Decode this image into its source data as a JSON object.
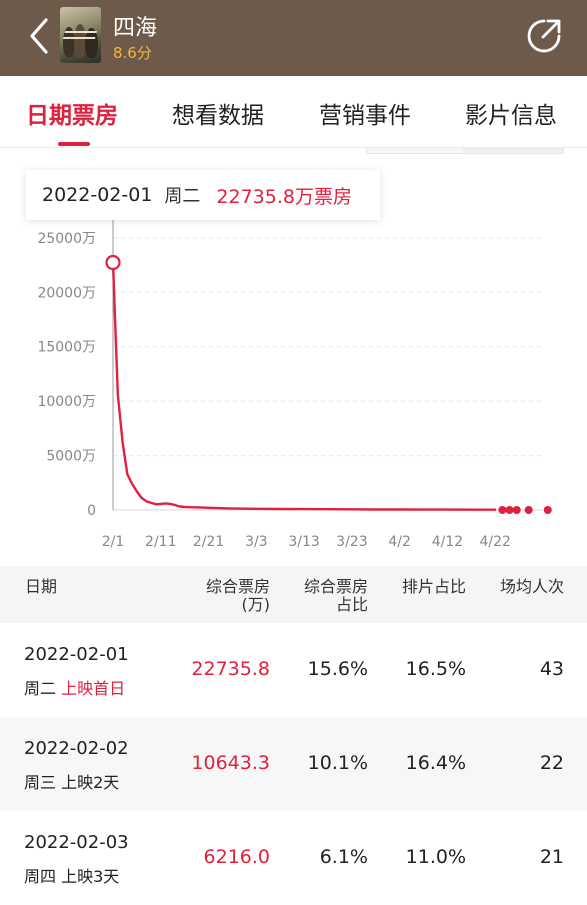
{
  "header": {
    "title": "四海",
    "score": "8.6分",
    "icons": {
      "back": "back-icon",
      "share": "share-icon"
    }
  },
  "tabs": [
    {
      "label": "日期票房",
      "active": true
    },
    {
      "label": "想看数据",
      "active": false
    },
    {
      "label": "营销事件",
      "active": false
    },
    {
      "label": "影片信息",
      "active": false
    }
  ],
  "tooltip": {
    "date": "2022-02-01",
    "weekday": "周二",
    "value": "22735.8万票房"
  },
  "chart_data": {
    "type": "line",
    "yticks": [
      "25000万",
      "20000万",
      "15000万",
      "10000万",
      "5000万",
      "0"
    ],
    "ytick_values": [
      25000,
      20000,
      15000,
      10000,
      5000,
      0
    ],
    "ylim": [
      0,
      26000
    ],
    "xticks": [
      "2/1",
      "2/11",
      "2/21",
      "3/3",
      "3/13",
      "3/23",
      "4/2",
      "4/12",
      "4/22"
    ],
    "xlim": [
      0,
      90
    ],
    "xtick_days": [
      0,
      10,
      20,
      30,
      40,
      50,
      60,
      70,
      80
    ],
    "highlight_index": 0,
    "series": [
      {
        "color": "#e0213e",
        "x": [
          0,
          1,
          2,
          3,
          4,
          5,
          6,
          7,
          8,
          9,
          10,
          11,
          12,
          13,
          14,
          15,
          16,
          17,
          18,
          19,
          20,
          22,
          24,
          26,
          28,
          30,
          35,
          40,
          45,
          50,
          55,
          60,
          65,
          70,
          75,
          80
        ],
        "y": [
          22735.8,
          10643.3,
          6216.0,
          3300,
          2400,
          1700,
          1100,
          800,
          650,
          520,
          560,
          610,
          560,
          450,
          320,
          280,
          260,
          250,
          240,
          220,
          200,
          170,
          150,
          130,
          120,
          110,
          90,
          80,
          70,
          60,
          50,
          45,
          40,
          35,
          30,
          25
        ]
      }
    ],
    "trailing_points": {
      "x": [
        81.5,
        83,
        84.5,
        87,
        91
      ],
      "y": [
        0,
        0,
        0,
        0,
        0
      ]
    }
  },
  "table": {
    "headers": [
      {
        "line1": "日期",
        "line2": ""
      },
      {
        "line1": "综合票房",
        "line2": "(万)"
      },
      {
        "line1": "综合票房",
        "line2": "占比"
      },
      {
        "line1": "排片占比",
        "line2": ""
      },
      {
        "line1": "场均人次",
        "line2": ""
      }
    ],
    "rows": [
      {
        "date": "2022-02-01",
        "weekday": "周二",
        "release": "上映首日",
        "box": "22735.8",
        "share": "15.6%",
        "screen": "16.5%",
        "avg": "43"
      },
      {
        "date": "2022-02-02",
        "weekday": "周三",
        "release": "上映2天",
        "box": "10643.3",
        "share": "10.1%",
        "screen": "16.4%",
        "avg": "22"
      },
      {
        "date": "2022-02-03",
        "weekday": "周四",
        "release": "上映3天",
        "box": "6216.0",
        "share": "6.1%",
        "screen": "11.0%",
        "avg": "21"
      }
    ]
  }
}
